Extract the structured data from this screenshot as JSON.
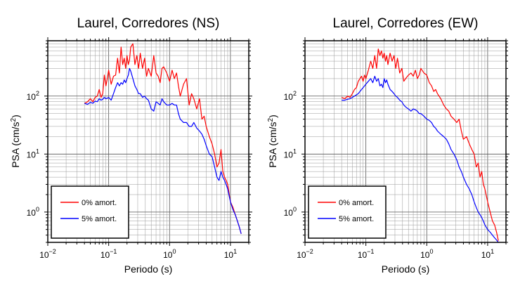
{
  "chart_data": [
    {
      "type": "line",
      "title": "Laurel, Corredores (NS)",
      "xlabel": "Periodo (s)",
      "ylabel": "PSA (cm/s²)",
      "xscale": "log",
      "yscale": "log",
      "xlim": [
        0.01,
        20
      ],
      "ylim": [
        0.3,
        900
      ],
      "xticks": [
        {
          "value": 0.01,
          "label": "10",
          "exp": "−2"
        },
        {
          "value": 0.1,
          "label": "10",
          "exp": "−1"
        },
        {
          "value": 1,
          "label": "10",
          "exp": "0"
        },
        {
          "value": 10,
          "label": "10",
          "exp": "1"
        }
      ],
      "yticks": [
        {
          "value": 1,
          "label": "10",
          "exp": "0"
        },
        {
          "value": 10,
          "label": "10",
          "exp": "1"
        },
        {
          "value": 100,
          "label": "10",
          "exp": "2"
        }
      ],
      "grid": true,
      "legend_position": "bottom-left",
      "series": [
        {
          "name": "0% amort.",
          "color": "#ff0000",
          "x": [
            0.04,
            0.045,
            0.05,
            0.055,
            0.06,
            0.065,
            0.07,
            0.075,
            0.08,
            0.085,
            0.09,
            0.095,
            0.1,
            0.11,
            0.12,
            0.13,
            0.14,
            0.15,
            0.16,
            0.17,
            0.18,
            0.19,
            0.2,
            0.21,
            0.22,
            0.23,
            0.25,
            0.27,
            0.29,
            0.31,
            0.33,
            0.36,
            0.39,
            0.42,
            0.45,
            0.5,
            0.55,
            0.6,
            0.65,
            0.7,
            0.75,
            0.8,
            0.9,
            1.0,
            1.1,
            1.2,
            1.3,
            1.4,
            1.5,
            1.7,
            1.9,
            2.1,
            2.3,
            2.5,
            2.8,
            3.1,
            3.4,
            3.7,
            4.0,
            4.5,
            5.0,
            5.5,
            6.0,
            6.5,
            7.0,
            7.5,
            8.0,
            8.5,
            9.0,
            10.0,
            11.0,
            12.0,
            13.0,
            14.0,
            15.0
          ],
          "y": [
            75,
            80,
            90,
            80,
            95,
            100,
            130,
            95,
            110,
            230,
            150,
            200,
            280,
            160,
            220,
            230,
            450,
            250,
            700,
            350,
            450,
            300,
            500,
            350,
            420,
            700,
            800,
            350,
            500,
            300,
            550,
            300,
            450,
            220,
            300,
            220,
            500,
            250,
            220,
            170,
            300,
            320,
            250,
            180,
            280,
            200,
            250,
            150,
            100,
            160,
            200,
            70,
            110,
            90,
            60,
            90,
            40,
            45,
            30,
            20,
            15,
            10,
            6,
            7,
            12,
            5,
            4,
            3.5,
            3,
            1.5,
            1.2,
            0.9,
            0.7,
            0.55,
            0.42
          ]
        },
        {
          "name": "5% amort.",
          "color": "#0000ff",
          "x": [
            0.04,
            0.045,
            0.05,
            0.055,
            0.06,
            0.065,
            0.07,
            0.075,
            0.08,
            0.085,
            0.09,
            0.095,
            0.1,
            0.11,
            0.12,
            0.13,
            0.14,
            0.15,
            0.16,
            0.17,
            0.18,
            0.19,
            0.2,
            0.21,
            0.22,
            0.23,
            0.25,
            0.27,
            0.29,
            0.31,
            0.33,
            0.36,
            0.39,
            0.42,
            0.45,
            0.5,
            0.55,
            0.6,
            0.65,
            0.7,
            0.75,
            0.8,
            0.9,
            1.0,
            1.1,
            1.2,
            1.3,
            1.4,
            1.5,
            1.7,
            1.9,
            2.1,
            2.3,
            2.5,
            2.8,
            3.1,
            3.4,
            3.7,
            4.0,
            4.5,
            5.0,
            5.5,
            6.0,
            6.5,
            7.0,
            7.5,
            8.0,
            8.5,
            9.0,
            10.0,
            11.0,
            12.0,
            13.0,
            14.0,
            15.0
          ],
          "y": [
            75,
            72,
            78,
            75,
            82,
            80,
            90,
            85,
            88,
            95,
            90,
            92,
            95,
            85,
            110,
            140,
            170,
            150,
            170,
            160,
            190,
            170,
            200,
            230,
            300,
            270,
            200,
            150,
            130,
            110,
            110,
            95,
            100,
            90,
            85,
            60,
            55,
            80,
            75,
            70,
            90,
            80,
            70,
            70,
            75,
            70,
            70,
            50,
            40,
            35,
            35,
            30,
            30,
            35,
            28,
            25,
            22,
            18,
            14,
            10,
            9,
            6,
            4,
            3.5,
            5,
            4,
            3.5,
            3,
            2.5,
            1.5,
            1.1,
            0.9,
            0.7,
            0.55,
            0.42
          ]
        }
      ]
    },
    {
      "type": "line",
      "title": "Laurel, Corredores (EW)",
      "xlabel": "Periodo (s)",
      "ylabel": "PSA (cm/s²)",
      "xscale": "log",
      "yscale": "log",
      "xlim": [
        0.01,
        20
      ],
      "ylim": [
        0.3,
        900
      ],
      "xticks": [
        {
          "value": 0.01,
          "label": "10",
          "exp": "−2"
        },
        {
          "value": 0.1,
          "label": "10",
          "exp": "−1"
        },
        {
          "value": 1,
          "label": "10",
          "exp": "0"
        },
        {
          "value": 10,
          "label": "10",
          "exp": "1"
        }
      ],
      "yticks": [
        {
          "value": 1,
          "label": "10",
          "exp": "0"
        },
        {
          "value": 10,
          "label": "10",
          "exp": "1"
        },
        {
          "value": 100,
          "label": "10",
          "exp": "2"
        }
      ],
      "grid": true,
      "legend_position": "bottom-left",
      "series": [
        {
          "name": "0% amort.",
          "color": "#ff0000",
          "x": [
            0.04,
            0.045,
            0.05,
            0.055,
            0.06,
            0.065,
            0.07,
            0.075,
            0.08,
            0.085,
            0.09,
            0.095,
            0.1,
            0.11,
            0.12,
            0.13,
            0.14,
            0.15,
            0.16,
            0.17,
            0.18,
            0.19,
            0.2,
            0.21,
            0.22,
            0.23,
            0.25,
            0.27,
            0.29,
            0.31,
            0.33,
            0.36,
            0.39,
            0.42,
            0.45,
            0.5,
            0.55,
            0.6,
            0.65,
            0.7,
            0.75,
            0.8,
            0.9,
            1.0,
            1.1,
            1.2,
            1.3,
            1.4,
            1.5,
            1.7,
            1.9,
            2.1,
            2.3,
            2.5,
            2.8,
            3.1,
            3.4,
            3.7,
            4.0,
            4.5,
            5.0,
            5.5,
            6.0,
            6.5,
            7.0,
            7.5,
            8.0,
            8.5,
            9.0,
            10.0,
            11.0,
            12.0,
            13.0,
            14.0,
            15.0
          ],
          "y": [
            95,
            90,
            100,
            95,
            110,
            130,
            140,
            180,
            200,
            220,
            180,
            230,
            200,
            280,
            400,
            300,
            500,
            300,
            650,
            500,
            600,
            450,
            550,
            400,
            500,
            350,
            550,
            400,
            500,
            300,
            450,
            250,
            300,
            180,
            200,
            230,
            250,
            220,
            280,
            200,
            230,
            300,
            250,
            230,
            170,
            150,
            120,
            130,
            110,
            90,
            70,
            60,
            55,
            45,
            40,
            35,
            40,
            25,
            18,
            20,
            15,
            12,
            10,
            6,
            7,
            4,
            5,
            3,
            2.5,
            1.5,
            1,
            0.7,
            0.6,
            0.45,
            0.32
          ]
        },
        {
          "name": "5% amort.",
          "color": "#0000ff",
          "x": [
            0.04,
            0.045,
            0.05,
            0.055,
            0.06,
            0.065,
            0.07,
            0.075,
            0.08,
            0.085,
            0.09,
            0.095,
            0.1,
            0.11,
            0.12,
            0.13,
            0.14,
            0.15,
            0.16,
            0.17,
            0.18,
            0.19,
            0.2,
            0.21,
            0.22,
            0.23,
            0.25,
            0.27,
            0.29,
            0.31,
            0.33,
            0.36,
            0.39,
            0.42,
            0.45,
            0.5,
            0.55,
            0.6,
            0.65,
            0.7,
            0.75,
            0.8,
            0.9,
            1.0,
            1.1,
            1.2,
            1.3,
            1.4,
            1.5,
            1.7,
            1.9,
            2.1,
            2.3,
            2.5,
            2.8,
            3.1,
            3.4,
            3.7,
            4.0,
            4.5,
            5.0,
            5.5,
            6.0,
            6.5,
            7.0,
            7.5,
            8.0,
            8.5,
            9.0,
            10.0,
            11.0,
            12.0,
            13.0,
            14.0,
            15.0
          ],
          "y": [
            85,
            85,
            88,
            90,
            95,
            100,
            105,
            110,
            120,
            130,
            140,
            150,
            160,
            180,
            200,
            170,
            220,
            180,
            200,
            150,
            160,
            140,
            200,
            170,
            190,
            160,
            130,
            120,
            110,
            100,
            95,
            85,
            80,
            70,
            65,
            60,
            55,
            60,
            58,
            55,
            50,
            50,
            45,
            40,
            38,
            35,
            30,
            28,
            25,
            22,
            20,
            18,
            15,
            12,
            10,
            8,
            6,
            5,
            4,
            3,
            2.5,
            2,
            1.5,
            1.2,
            1,
            0.9,
            0.8,
            0.7,
            0.6,
            0.5,
            0.45,
            0.4,
            0.36,
            0.33,
            0.3
          ]
        }
      ]
    }
  ]
}
